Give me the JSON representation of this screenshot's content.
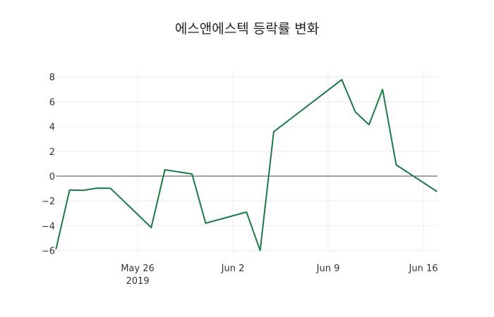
{
  "chart_data": {
    "type": "line",
    "title": "에스앤에스텍 등락률 변화",
    "xlabel": "",
    "ylabel": "",
    "ylim": [
      -6.2,
      8.6
    ],
    "yticks": [
      8,
      6,
      4,
      2,
      0,
      -2,
      -4,
      -6
    ],
    "ytick_labels": [
      "8",
      "6",
      "4",
      "2",
      "0",
      "−2",
      "−4",
      "−6"
    ],
    "xticks": [
      {
        "date": "2019-05-26",
        "label": "May 26",
        "sublabel": "2019"
      },
      {
        "date": "2019-06-02",
        "label": "Jun 2",
        "sublabel": ""
      },
      {
        "date": "2019-06-09",
        "label": "Jun 9",
        "sublabel": ""
      },
      {
        "date": "2019-06-16",
        "label": "Jun 16",
        "sublabel": ""
      }
    ],
    "grid": true,
    "zero_line": true,
    "line_color": "#1a7a44",
    "series": [
      {
        "name": "등락률",
        "x": [
          "2019-05-20",
          "2019-05-21",
          "2019-05-22",
          "2019-05-23",
          "2019-05-24",
          "2019-05-27",
          "2019-05-28",
          "2019-05-30",
          "2019-05-31",
          "2019-06-03",
          "2019-06-04",
          "2019-06-05",
          "2019-06-10",
          "2019-06-11",
          "2019-06-12",
          "2019-06-13",
          "2019-06-14",
          "2019-06-17"
        ],
        "values": [
          -5.9,
          -1.12,
          -1.15,
          -0.97,
          -0.98,
          -4.15,
          0.51,
          0.17,
          -3.8,
          -2.9,
          -6.0,
          3.58,
          7.78,
          5.17,
          4.15,
          6.99,
          0.91,
          -1.25
        ]
      }
    ]
  }
}
